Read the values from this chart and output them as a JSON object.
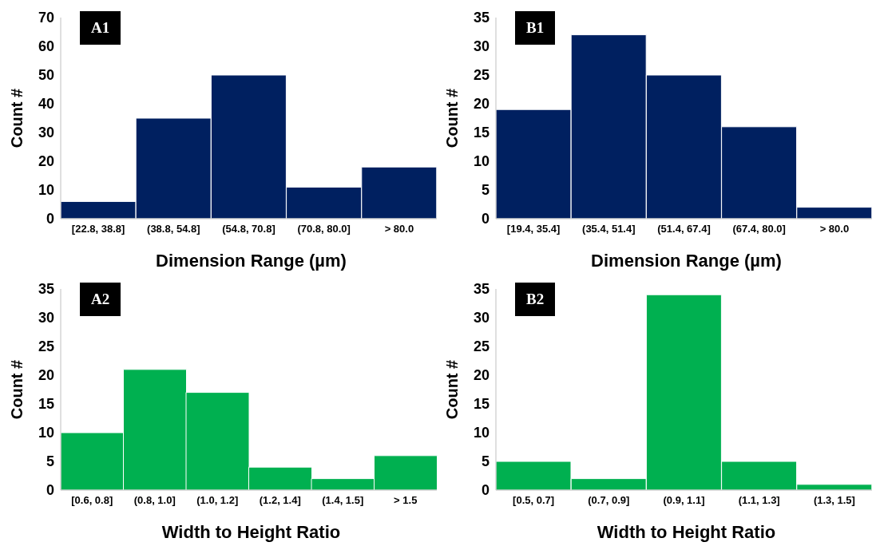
{
  "chart_data": [
    {
      "type": "bar",
      "title": "A1",
      "xlabel": "Dimension Range  (µm)",
      "ylabel": "Count #",
      "categories": [
        "[22.8, 38.8]",
        "(38.8, 54.8]",
        "(54.8, 70.8]",
        "(70.8, 80.0]",
        "> 80.0"
      ],
      "values": [
        6,
        35,
        50,
        11,
        18
      ],
      "color": "#002060",
      "ylim": [
        0,
        70
      ],
      "yticks": [
        0,
        10,
        20,
        30,
        40,
        50,
        60,
        70
      ],
      "grid": false,
      "legend": false
    },
    {
      "type": "bar",
      "title": "B1",
      "xlabel": "Dimension Range  (µm)",
      "ylabel": "Count #",
      "categories": [
        "[19.4, 35.4]",
        "(35.4, 51.4]",
        "(51.4, 67.4]",
        "(67.4, 80.0]",
        "> 80.0"
      ],
      "values": [
        19,
        32,
        25,
        16,
        2
      ],
      "color": "#002060",
      "ylim": [
        0,
        35
      ],
      "yticks": [
        0,
        5,
        10,
        15,
        20,
        25,
        30,
        35
      ],
      "grid": false,
      "legend": false
    },
    {
      "type": "bar",
      "title": "A2",
      "xlabel": "Width to Height Ratio",
      "ylabel": "Count #",
      "categories": [
        "[0.6, 0.8]",
        "(0.8, 1.0]",
        "(1.0, 1.2]",
        "(1.2, 1.4]",
        "(1.4, 1.5]",
        "> 1.5"
      ],
      "values": [
        10,
        21,
        17,
        4,
        2,
        6
      ],
      "color": "#00b050",
      "ylim": [
        0,
        35
      ],
      "yticks": [
        0,
        5,
        10,
        15,
        20,
        25,
        30,
        35
      ],
      "grid": false,
      "legend": false
    },
    {
      "type": "bar",
      "title": "B2",
      "xlabel": "Width to Height Ratio",
      "ylabel": "Count #",
      "categories": [
        "[0.5, 0.7]",
        "(0.7, 0.9]",
        "(0.9, 1.1]",
        "(1.1, 1.3]",
        "(1.3, 1.5]"
      ],
      "values": [
        5,
        2,
        34,
        5,
        1
      ],
      "color": "#00b050",
      "ylim": [
        0,
        35
      ],
      "yticks": [
        0,
        5,
        10,
        15,
        20,
        25,
        30,
        35
      ],
      "grid": false,
      "legend": false
    }
  ]
}
